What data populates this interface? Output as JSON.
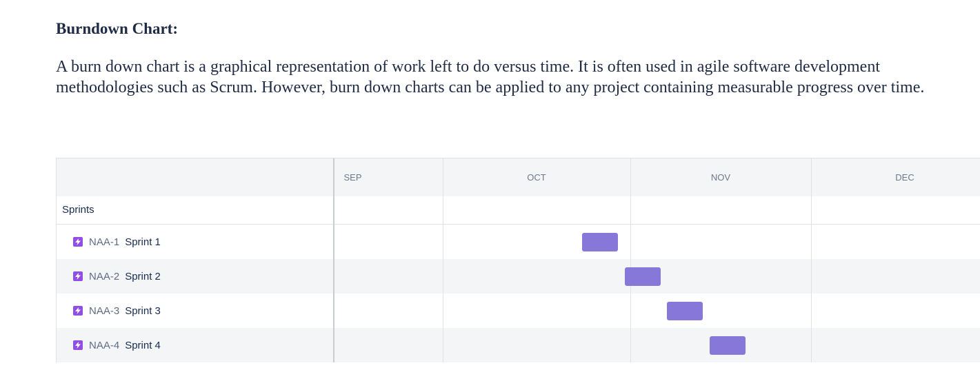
{
  "document": {
    "heading": "Burndown Chart:",
    "paragraph": "A burn down chart is a graphical representation of work left to do versus time. It is often used in agile software development methodologies such as Scrum. However, burn down charts can be applied to any project containing measurable progress over time."
  },
  "timeline": {
    "months": [
      "SEP",
      "OCT",
      "NOV",
      "DEC"
    ],
    "group_label": "Sprints",
    "bar_color": "#8777d9",
    "icon_color": "#904ee2",
    "icon_name": "lightning-bolt-icon",
    "issues": [
      {
        "key": "NAA-1",
        "name": "Sprint 1"
      },
      {
        "key": "NAA-2",
        "name": "Sprint 2"
      },
      {
        "key": "NAA-3",
        "name": "Sprint 3"
      },
      {
        "key": "NAA-4",
        "name": "Sprint 4"
      }
    ]
  }
}
